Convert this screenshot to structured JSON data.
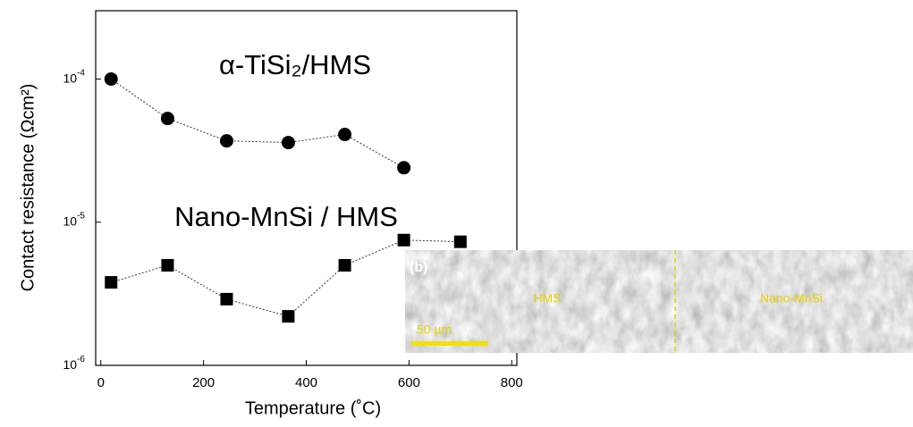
{
  "chart_data": {
    "type": "scatter",
    "x_label": "Temperature (˚C)",
    "y_label": "Contact resistance (Ωcm²)",
    "xlim": [
      -10,
      810
    ],
    "xticks": [
      0,
      200,
      400,
      600,
      800
    ],
    "ylim": [
      1e-06,
      0.0003
    ],
    "log_y": true,
    "yticks": [
      {
        "value": 1e-06,
        "label": "10",
        "sup": "-6"
      },
      {
        "value": 1e-05,
        "label": "10",
        "sup": "-5"
      },
      {
        "value": 0.0001,
        "label": "10",
        "sup": "-4"
      }
    ],
    "series": [
      {
        "name": "α-TiSi₂/HMS",
        "marker": "circle",
        "color": "#000000",
        "x": [
          20,
          130,
          245,
          365,
          475,
          590
        ],
        "values": [
          0.0001,
          5.3e-05,
          3.7e-05,
          3.6e-05,
          4.1e-05,
          2.4e-05
        ]
      },
      {
        "name": "Nano-MnSi / HMS",
        "marker": "square",
        "color": "#000000",
        "x": [
          20,
          130,
          245,
          365,
          475,
          590,
          700
        ],
        "values": [
          3.8e-06,
          5e-06,
          2.9e-06,
          2.2e-06,
          5e-06,
          7.5e-06,
          7.3e-06
        ]
      }
    ],
    "inset": {
      "panel": "(b)",
      "left_label": "HMS",
      "right_label": "Nano-MnSi",
      "scale_bar": "50 µm"
    }
  }
}
